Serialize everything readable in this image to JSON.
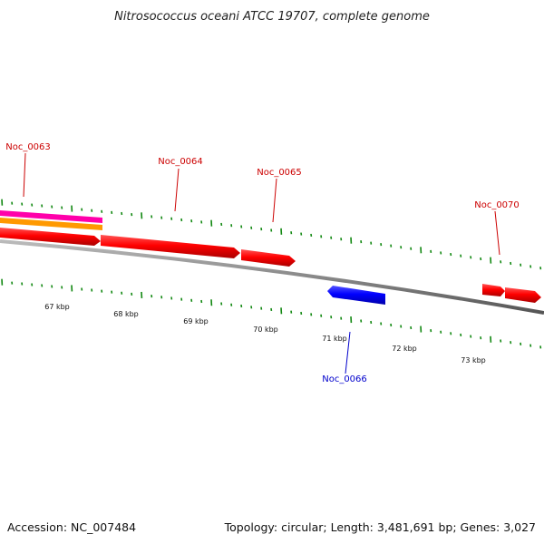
{
  "title": "Nitrosococcus oceani ATCC 19707, complete genome",
  "footer": {
    "accession": "Accession: NC_007484",
    "summary": "Topology: circular; Length: 3,481,691 bp; Genes: 3,027"
  },
  "colors": {
    "forward_gene": "#ff0000",
    "reverse_gene": "#0000ff",
    "forward_label": "#cc0000",
    "reverse_label": "#0000cc",
    "backbone": "#888888",
    "tick": "#118811",
    "track_magenta": "#ff00aa",
    "track_orange": "#ff9900"
  },
  "genes": [
    {
      "id": "Noc_0063",
      "label": "Noc_0063",
      "strand": "+"
    },
    {
      "id": "Noc_0064",
      "label": "Noc_0064",
      "strand": "+"
    },
    {
      "id": "Noc_0065",
      "label": "Noc_0065",
      "strand": "+"
    },
    {
      "id": "Noc_0066",
      "label": "Noc_0066",
      "strand": "-"
    },
    {
      "id": "Noc_0070",
      "label": "Noc_0070",
      "strand": "+"
    }
  ],
  "ruler": [
    "67 kbp",
    "68 kbp",
    "69 kbp",
    "70 kbp",
    "71 kbp",
    "72 kbp",
    "73 kbp"
  ]
}
